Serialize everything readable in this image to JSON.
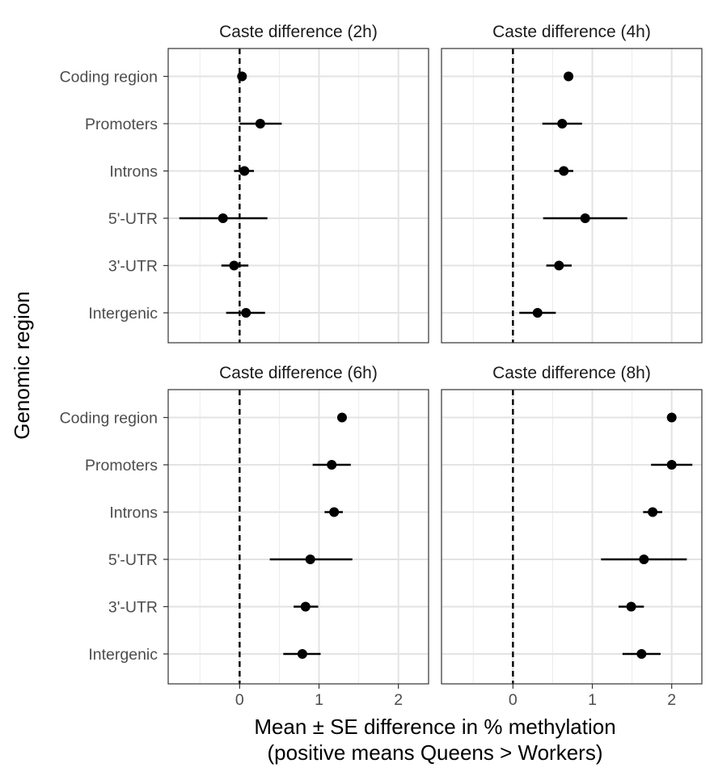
{
  "chart_data": {
    "type": "dot-errorbar",
    "ylabel": "Genomic region",
    "xlabel_line1": "Mean ± SE difference in % methylation",
    "xlabel_line2": "(positive means Queens > Workers)",
    "categories": [
      "Coding region",
      "Promoters",
      "Introns",
      "5'-UTR",
      "3'-UTR",
      "Intergenic"
    ],
    "xlim": [
      -0.9,
      2.38
    ],
    "xticks": [
      0,
      1,
      2
    ],
    "reference_line": 0,
    "grid": true,
    "panels": [
      {
        "title": "Caste difference (2h)",
        "points": [
          {
            "region": "Coding region",
            "mean": 0.03,
            "lo": 0.01,
            "hi": 0.05
          },
          {
            "region": "Promoters",
            "mean": 0.26,
            "lo": 0.0,
            "hi": 0.53
          },
          {
            "region": "Introns",
            "mean": 0.06,
            "lo": -0.07,
            "hi": 0.18
          },
          {
            "region": "5'-UTR",
            "mean": -0.21,
            "lo": -0.76,
            "hi": 0.35
          },
          {
            "region": "3'-UTR",
            "mean": -0.07,
            "lo": -0.23,
            "hi": 0.11
          },
          {
            "region": "Intergenic",
            "mean": 0.08,
            "lo": -0.17,
            "hi": 0.32
          }
        ]
      },
      {
        "title": "Caste difference (4h)",
        "points": [
          {
            "region": "Coding region",
            "mean": 0.7,
            "lo": 0.68,
            "hi": 0.72
          },
          {
            "region": "Promoters",
            "mean": 0.62,
            "lo": 0.37,
            "hi": 0.87
          },
          {
            "region": "Introns",
            "mean": 0.64,
            "lo": 0.52,
            "hi": 0.76
          },
          {
            "region": "5'-UTR",
            "mean": 0.91,
            "lo": 0.38,
            "hi": 1.44
          },
          {
            "region": "3'-UTR",
            "mean": 0.58,
            "lo": 0.42,
            "hi": 0.74
          },
          {
            "region": "Intergenic",
            "mean": 0.31,
            "lo": 0.08,
            "hi": 0.54
          }
        ]
      },
      {
        "title": "Caste difference (6h)",
        "points": [
          {
            "region": "Coding region",
            "mean": 1.29,
            "lo": 1.27,
            "hi": 1.31
          },
          {
            "region": "Promoters",
            "mean": 1.16,
            "lo": 0.92,
            "hi": 1.4
          },
          {
            "region": "Introns",
            "mean": 1.19,
            "lo": 1.07,
            "hi": 1.3
          },
          {
            "region": "5'-UTR",
            "mean": 0.89,
            "lo": 0.38,
            "hi": 1.42
          },
          {
            "region": "3'-UTR",
            "mean": 0.83,
            "lo": 0.68,
            "hi": 0.99
          },
          {
            "region": "Intergenic",
            "mean": 0.79,
            "lo": 0.55,
            "hi": 1.02
          }
        ]
      },
      {
        "title": "Caste difference (8h)",
        "points": [
          {
            "region": "Coding region",
            "mean": 2.0,
            "lo": 1.98,
            "hi": 2.02
          },
          {
            "region": "Promoters",
            "mean": 2.0,
            "lo": 1.74,
            "hi": 2.26
          },
          {
            "region": "Introns",
            "mean": 1.76,
            "lo": 1.64,
            "hi": 1.88
          },
          {
            "region": "5'-UTR",
            "mean": 1.65,
            "lo": 1.11,
            "hi": 2.19
          },
          {
            "region": "3'-UTR",
            "mean": 1.49,
            "lo": 1.33,
            "hi": 1.65
          },
          {
            "region": "Intergenic",
            "mean": 1.62,
            "lo": 1.38,
            "hi": 1.86
          }
        ]
      }
    ]
  }
}
